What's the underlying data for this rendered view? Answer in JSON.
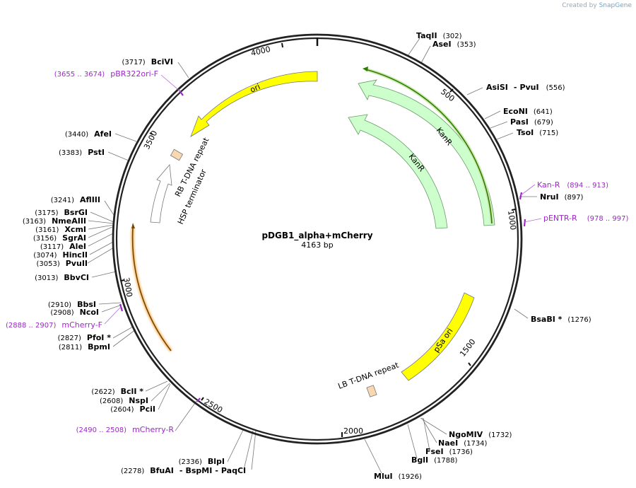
{
  "watermark": {
    "prefix": "Created by",
    "brand": "SnapGene"
  },
  "plasmid": {
    "name": "pDGB1_alpha+mCherry",
    "size_label": "4163 bp",
    "length": 4163
  },
  "ticks": [
    {
      "label": "500",
      "pos": 500
    },
    {
      "label": "1000",
      "pos": 1000
    },
    {
      "label": "1500",
      "pos": 1500
    },
    {
      "label": "2000",
      "pos": 2000
    },
    {
      "label": "2500",
      "pos": 2500
    },
    {
      "label": "3000",
      "pos": 3000
    },
    {
      "label": "3500",
      "pos": 3500
    },
    {
      "label": "4000",
      "pos": 4000
    }
  ],
  "enzymes_right": [
    {
      "name": "TaqII",
      "pos_label": "(302)",
      "pos": 302
    },
    {
      "name": "AseI",
      "pos_label": "(353)",
      "pos": 353
    },
    {
      "name": "AsiSI",
      "sep": "-",
      "name2": "PvuI",
      "pos_label": "(556)",
      "pos": 556
    },
    {
      "name": "EcoNI",
      "pos_label": "(641)",
      "pos": 641
    },
    {
      "name": "PasI",
      "pos_label": "(679)",
      "pos": 679
    },
    {
      "name": "TsoI",
      "pos_label": "(715)",
      "pos": 715
    },
    {
      "name": "NruI",
      "pos_label": "(897)",
      "pos": 897
    },
    {
      "name": "BsaBI *",
      "pos_label": "(1276)",
      "pos": 1276
    },
    {
      "name": "NgoMIV",
      "pos_label": "(1732)",
      "pos": 1732
    },
    {
      "name": "NaeI",
      "pos_label": "(1734)",
      "pos": 1734
    },
    {
      "name": "FseI",
      "pos_label": "(1736)",
      "pos": 1736
    },
    {
      "name": "BglI",
      "pos_label": "(1788)",
      "pos": 1788
    },
    {
      "name": "MluI",
      "pos_label": "(1926)",
      "pos": 1926
    }
  ],
  "enzymes_left": [
    {
      "name": "BciVI",
      "pos_label": "(3717)",
      "pos": 3717
    },
    {
      "name": "AfeI",
      "pos_label": "(3440)",
      "pos": 3440
    },
    {
      "name": "PstI",
      "pos_label": "(3383)",
      "pos": 3383
    },
    {
      "name": "AflIII",
      "pos_label": "(3241)",
      "pos": 3241
    },
    {
      "name": "BsrGI",
      "pos_label": "(3175)",
      "pos": 3175
    },
    {
      "name": "NmeAIII",
      "pos_label": "(3163)",
      "pos": 3163
    },
    {
      "name": "XcmI",
      "pos_label": "(3161)",
      "pos": 3161
    },
    {
      "name": "SgrAI",
      "pos_label": "(3156)",
      "pos": 3156
    },
    {
      "name": "AleI",
      "pos_label": "(3117)",
      "pos": 3117
    },
    {
      "name": "HincII",
      "pos_label": "(3074)",
      "pos": 3074
    },
    {
      "name": "PvuII",
      "pos_label": "(3053)",
      "pos": 3053
    },
    {
      "name": "BbvCI",
      "pos_label": "(3013)",
      "pos": 3013
    },
    {
      "name": "BbsI",
      "pos_label": "(2910)",
      "pos": 2910
    },
    {
      "name": "NcoI",
      "pos_label": "(2908)",
      "pos": 2908
    },
    {
      "name": "PfoI *",
      "pos_label": "(2827)",
      "pos": 2827
    },
    {
      "name": "BpmI",
      "pos_label": "(2811)",
      "pos": 2811
    },
    {
      "name": "BclI *",
      "pos_label": "(2622)",
      "pos": 2622
    },
    {
      "name": "NspI",
      "pos_label": "(2608)",
      "pos": 2608
    },
    {
      "name": "PciI",
      "pos_label": "(2604)",
      "pos": 2604
    },
    {
      "name": "BlpI",
      "pos_label": "(2336)",
      "pos": 2336
    },
    {
      "name": "BfuAI",
      "sep": "-",
      "name2": "BspMI",
      "sep2": "-",
      "name3": "PaqCI",
      "pos_label": "(2278)",
      "pos": 2278
    }
  ],
  "primers": [
    {
      "name": "Kan-R",
      "range_label": "(894 .. 913)",
      "start": 894,
      "end": 913
    },
    {
      "name": "pENTR-R",
      "range_label": "(978 .. 997)",
      "start": 978,
      "end": 997
    },
    {
      "name": "pBR322ori-F",
      "range_label": "(3655 .. 3674)",
      "start": 3655,
      "end": 3674
    },
    {
      "name": "mCherry-F",
      "range_label": "(2888 .. 2907)",
      "start": 2888,
      "end": 2907
    },
    {
      "name": "mCherry-R",
      "range_label": "(2490 .. 2508)",
      "start": 2490,
      "end": 2508
    }
  ],
  "features": [
    {
      "label": "ori",
      "color": "#ffff00"
    },
    {
      "label": "KanR",
      "color": "#ccffcc"
    },
    {
      "label": "KanR",
      "color": "#ccffcc"
    },
    {
      "label": "pSa ori",
      "color": "#ffff00"
    },
    {
      "label": "LB T-DNA repeat",
      "color": "#f8d8b0"
    },
    {
      "label": "RB T-DNA repeat",
      "color": "#f8d8b0"
    },
    {
      "label": "HSP terminator",
      "color": "#ffffff"
    }
  ],
  "colors": {
    "backbone": "#222222",
    "primer": "#9c27c9",
    "kan_orf": "#2e7d00",
    "mcherry_orf": "#7a4400",
    "mcherry_glow": "#f7c27a"
  }
}
